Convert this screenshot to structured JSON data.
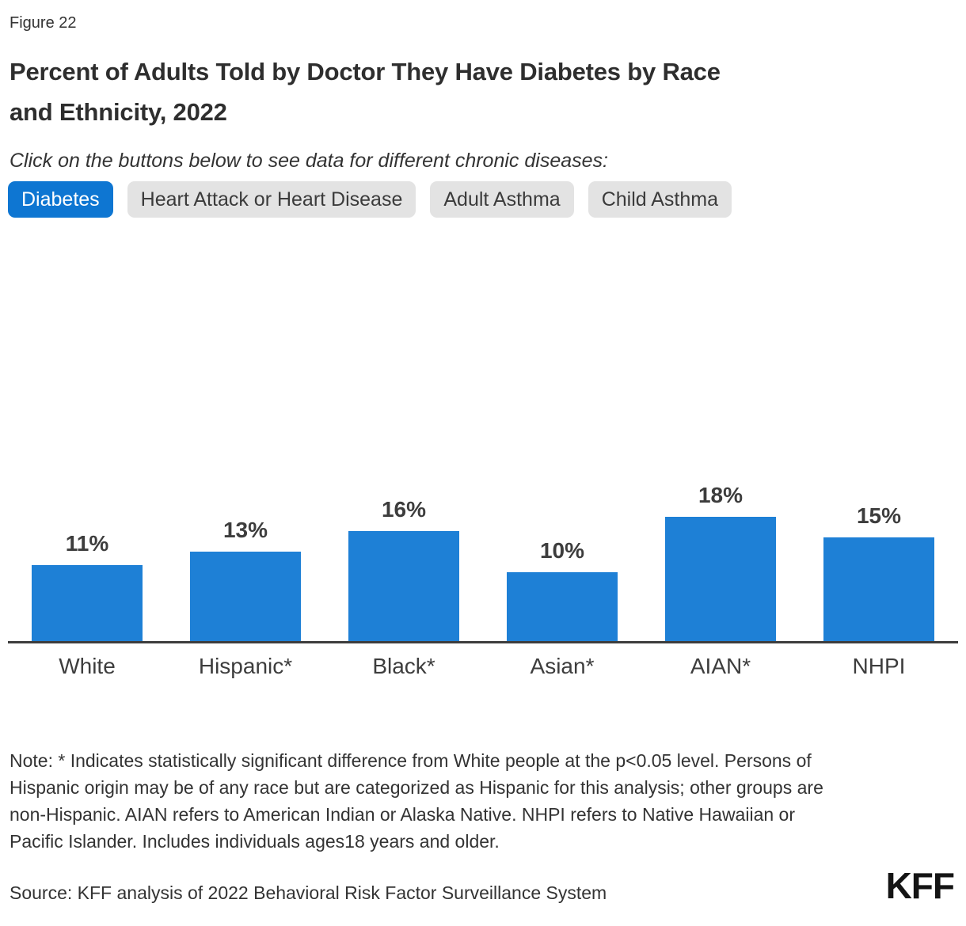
{
  "figure_label": "Figure 22",
  "title_lines": [
    "Percent of Adults Told by Doctor They Have Diabetes by Race",
    "and Ethnicity, 2022"
  ],
  "subtitle": "Click on the buttons below to see data for different chronic diseases:",
  "buttons": [
    {
      "label": "Diabetes",
      "selected": true
    },
    {
      "label": "Heart Attack or Heart Disease",
      "selected": false
    },
    {
      "label": "Adult Asthma",
      "selected": false
    },
    {
      "label": "Child Asthma",
      "selected": false
    }
  ],
  "chart_data": {
    "type": "bar",
    "title": "Percent of Adults Told by Doctor They Have Diabetes by Race and Ethnicity, 2022",
    "categories": [
      "White",
      "Hispanic*",
      "Black*",
      "Asian*",
      "AIAN*",
      "NHPI"
    ],
    "values": [
      11,
      13,
      16,
      10,
      18,
      15
    ],
    "value_labels": [
      "11%",
      "13%",
      "16%",
      "10%",
      "18%",
      "15%"
    ],
    "xlabel": "",
    "ylabel": "",
    "ylim": [
      0,
      20
    ],
    "unit": "percent",
    "grid": false,
    "legend": false,
    "bar_color": "#1e80d6"
  },
  "note": "Note: * Indicates statistically significant difference from White people at the p<0.05 level. Persons of Hispanic origin may be of any race but are categorized as Hispanic for this analysis; other groups are non-Hispanic. AIAN refers to American Indian or Alaska Native. NHPI refers to Native Hawaiian or Pacific Islander. Includes individuals ages18 years and older.",
  "source": "Source: KFF analysis of 2022 Behavioral Risk Factor Surveillance System",
  "logo_text": "KFF",
  "colors": {
    "selected_tab_blue": "#0e76d2",
    "bar_blue": "#1e80d6",
    "tab_gray_bg": "#e3e3e3",
    "text_dark": "#333333",
    "axis_gray": "#3d3d3d"
  }
}
